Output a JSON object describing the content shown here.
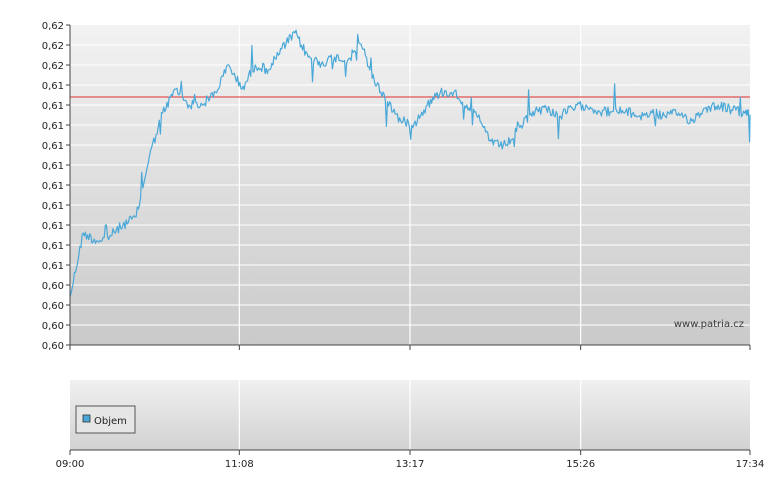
{
  "chart_data": {
    "type": "line",
    "title": "",
    "xlabel": "",
    "ylabel": "",
    "ylim": [
      0.6,
      0.62
    ],
    "y_tick_labels": [
      "0,62",
      "0,62",
      "0,62",
      "0,61",
      "0,61",
      "0,61",
      "0,61",
      "0,61",
      "0,61",
      "0,61",
      "0,61",
      "0,61",
      "0,61",
      "0,60",
      "0,60",
      "0,60",
      "0,60"
    ],
    "x_tick_labels": [
      "09:00",
      "11:08",
      "13:17",
      "15:26",
      "17:34"
    ],
    "reference_line": 0.6155,
    "watermark": "www.patria.cz",
    "grid": true,
    "series": [
      {
        "color": "#4aa8d8",
        "x": [
          "09:00",
          "09:10",
          "09:20",
          "09:30",
          "09:40",
          "09:50",
          "10:00",
          "10:10",
          "10:20",
          "10:30",
          "10:40",
          "10:50",
          "11:00",
          "11:10",
          "11:20",
          "11:30",
          "11:40",
          "11:50",
          "12:00",
          "12:10",
          "12:20",
          "12:30",
          "12:40",
          "12:50",
          "13:00",
          "13:10",
          "13:20",
          "13:30",
          "13:40",
          "13:50",
          "14:00",
          "14:10",
          "14:20",
          "14:30",
          "14:40",
          "14:50",
          "15:00",
          "15:10",
          "15:20",
          "15:30",
          "15:40",
          "15:50",
          "16:00",
          "16:10",
          "16:20",
          "16:30",
          "16:40",
          "16:50",
          "17:00",
          "17:10",
          "17:20",
          "17:30",
          "17:34"
        ],
        "values": [
          0.603,
          0.607,
          0.6065,
          0.6068,
          0.6075,
          0.608,
          0.6118,
          0.6145,
          0.616,
          0.615,
          0.615,
          0.6158,
          0.6175,
          0.616,
          0.6175,
          0.6172,
          0.6185,
          0.6195,
          0.618,
          0.6176,
          0.618,
          0.6178,
          0.6188,
          0.6165,
          0.6152,
          0.614,
          0.6138,
          0.615,
          0.6158,
          0.6158,
          0.615,
          0.614,
          0.6125,
          0.6125,
          0.6136,
          0.6146,
          0.6148,
          0.6143,
          0.6148,
          0.615,
          0.6146,
          0.6146,
          0.6146,
          0.6143,
          0.6145,
          0.6143,
          0.6145,
          0.614,
          0.6148,
          0.615,
          0.6147,
          0.6145,
          0.6144
        ]
      }
    ]
  },
  "legend": {
    "label": "Objem",
    "color": "#4aa8d8"
  }
}
